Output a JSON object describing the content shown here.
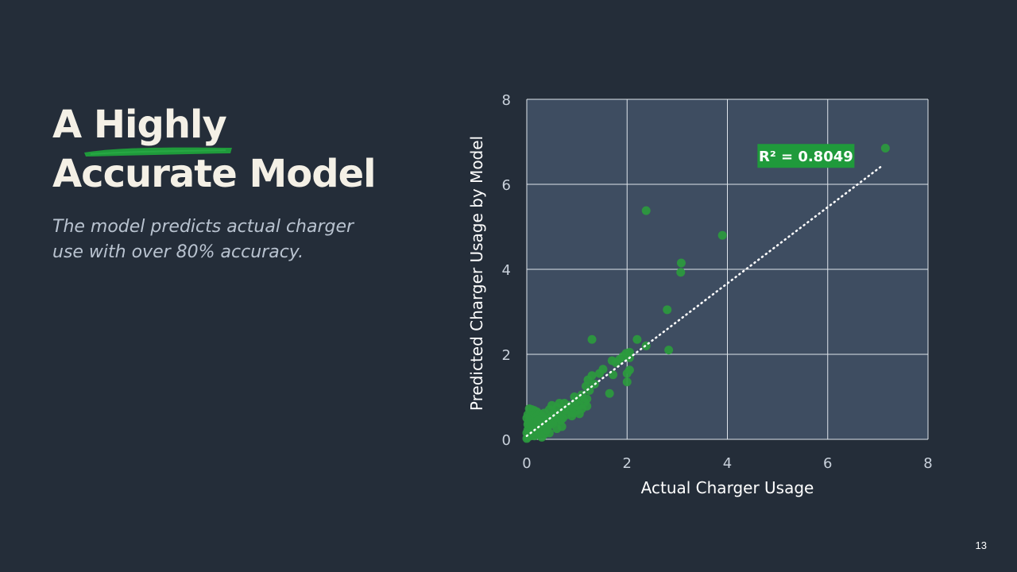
{
  "title": {
    "line1_part1": "A ",
    "line1_highlight": "Highly",
    "line2": "Accurate Model"
  },
  "subtitle": {
    "line1": "The model predicts actual charger",
    "line2": "use with over 80% accuracy."
  },
  "page_number": "13",
  "colors": {
    "background": "#242d39",
    "plot_area": "#3e4d61",
    "point": "#2b9a3e",
    "accent": "#1f9a3b",
    "title": "#f4f0e6",
    "subtitle": "#b9c3d0"
  },
  "chart_data": {
    "type": "scatter",
    "title": "",
    "xlabel": "Actual Charger Usage",
    "ylabel": "Predicted Charger Usage by Model",
    "xlim": [
      0,
      8
    ],
    "ylim": [
      0,
      8
    ],
    "x_ticks": [
      0,
      2,
      4,
      6,
      8
    ],
    "y_ticks": [
      0,
      2,
      4,
      6,
      8
    ],
    "grid": true,
    "annotation": "R² = 0.8049",
    "trendline": {
      "style": "dotted",
      "x": [
        0,
        7.1
      ],
      "y": [
        0.08,
        6.45
      ]
    },
    "points": [
      [
        7.15,
        6.85
      ],
      [
        2.38,
        5.38
      ],
      [
        3.9,
        4.8
      ],
      [
        3.08,
        4.15
      ],
      [
        3.07,
        3.93
      ],
      [
        2.8,
        3.05
      ],
      [
        2.83,
        2.1
      ],
      [
        2.38,
        2.2
      ],
      [
        2.2,
        2.35
      ],
      [
        1.3,
        2.35
      ],
      [
        2.05,
        2.05
      ],
      [
        1.98,
        2.02
      ],
      [
        1.92,
        1.95
      ],
      [
        2.05,
        1.92
      ],
      [
        1.85,
        1.88
      ],
      [
        1.78,
        1.8
      ],
      [
        1.7,
        1.85
      ],
      [
        2.05,
        1.63
      ],
      [
        2.0,
        1.55
      ],
      [
        2.0,
        1.35
      ],
      [
        1.72,
        1.52
      ],
      [
        1.52,
        1.65
      ],
      [
        1.45,
        1.55
      ],
      [
        1.3,
        1.5
      ],
      [
        1.22,
        1.4
      ],
      [
        1.35,
        1.3
      ],
      [
        1.18,
        1.25
      ],
      [
        1.65,
        1.08
      ],
      [
        1.25,
        1.15
      ],
      [
        1.1,
        1.05
      ],
      [
        1.05,
        0.95
      ],
      [
        1.2,
        0.95
      ],
      [
        0.98,
        0.9
      ],
      [
        1.15,
        0.88
      ],
      [
        1.05,
        0.8
      ],
      [
        0.95,
        0.78
      ],
      [
        1.2,
        0.78
      ],
      [
        0.88,
        0.75
      ],
      [
        1.1,
        0.72
      ],
      [
        0.82,
        0.7
      ],
      [
        1.0,
        0.68
      ],
      [
        0.75,
        0.72
      ],
      [
        0.92,
        0.62
      ],
      [
        0.7,
        0.62
      ],
      [
        1.05,
        0.6
      ],
      [
        0.8,
        0.58
      ],
      [
        0.62,
        0.6
      ],
      [
        0.9,
        0.55
      ],
      [
        0.55,
        0.62
      ],
      [
        0.72,
        0.5
      ],
      [
        0.6,
        0.52
      ],
      [
        0.5,
        0.55
      ],
      [
        0.68,
        0.45
      ],
      [
        0.45,
        0.5
      ],
      [
        0.58,
        0.42
      ],
      [
        0.4,
        0.45
      ],
      [
        0.52,
        0.38
      ],
      [
        0.35,
        0.42
      ],
      [
        0.48,
        0.35
      ],
      [
        0.3,
        0.4
      ],
      [
        0.42,
        0.3
      ],
      [
        0.25,
        0.38
      ],
      [
        0.38,
        0.28
      ],
      [
        0.2,
        0.35
      ],
      [
        0.33,
        0.25
      ],
      [
        0.15,
        0.32
      ],
      [
        0.28,
        0.22
      ],
      [
        0.1,
        0.3
      ],
      [
        0.22,
        0.2
      ],
      [
        0.05,
        0.28
      ],
      [
        0.18,
        0.18
      ],
      [
        0.02,
        0.22
      ],
      [
        0.12,
        0.15
      ],
      [
        0.05,
        0.12
      ],
      [
        0.08,
        0.08
      ],
      [
        0.02,
        0.05
      ],
      [
        0.0,
        0.02
      ],
      [
        0.15,
        0.08
      ],
      [
        0.25,
        0.1
      ],
      [
        0.3,
        0.05
      ],
      [
        0.35,
        0.12
      ],
      [
        0.45,
        0.15
      ],
      [
        0.4,
        0.22
      ],
      [
        0.6,
        0.25
      ],
      [
        0.7,
        0.3
      ],
      [
        0.05,
        0.72
      ],
      [
        0.1,
        0.7
      ],
      [
        0.15,
        0.68
      ],
      [
        0.2,
        0.65
      ],
      [
        0.08,
        0.62
      ],
      [
        0.02,
        0.58
      ],
      [
        0.12,
        0.55
      ],
      [
        0.18,
        0.52
      ],
      [
        0.25,
        0.6
      ],
      [
        0.3,
        0.55
      ],
      [
        0.0,
        0.5
      ],
      [
        0.05,
        0.45
      ],
      [
        0.1,
        0.42
      ],
      [
        0.22,
        0.45
      ],
      [
        0.35,
        0.62
      ],
      [
        0.45,
        0.7
      ],
      [
        0.5,
        0.8
      ],
      [
        0.6,
        0.75
      ],
      [
        0.65,
        0.85
      ],
      [
        0.75,
        0.85
      ],
      [
        0.85,
        0.8
      ],
      [
        0.95,
        1.0
      ],
      [
        0.02,
        0.35
      ],
      [
        0.0,
        0.15
      ],
      [
        0.03,
        0.4
      ]
    ]
  }
}
